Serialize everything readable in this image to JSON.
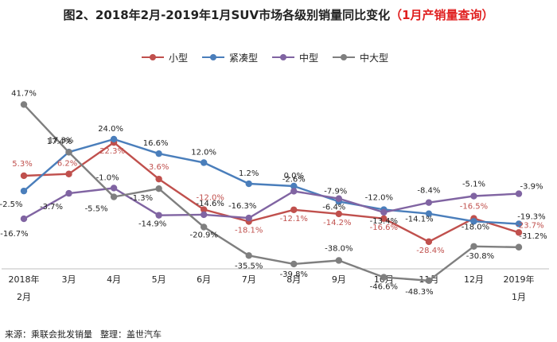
{
  "chart_data": {
    "type": "line",
    "title": "图2、2018年2月-2019年1月SUV市场各级别销量同比变化",
    "title_highlight": "（1月产销量查询）",
    "categories": [
      "2018年\n2月",
      "3月",
      "4月",
      "5月",
      "6月",
      "7月",
      "8月",
      "9月",
      "10月",
      "11月",
      "12月",
      "2019年\n1月"
    ],
    "xlabel": "",
    "ylabel": "",
    "unit": "%",
    "ylim": [
      -55,
      45
    ],
    "grid": false,
    "legend_position": "top",
    "series": [
      {
        "name": "小型",
        "color": "#c0504d",
        "values": [
          5.3,
          6.2,
          22.3,
          3.6,
          -12.0,
          -18.1,
          -12.1,
          -14.2,
          -16.6,
          -28.4,
          -16.5,
          -23.7
        ],
        "labels": [
          "5.3%",
          "6.2%",
          "22.3%",
          "3.6%",
          "-12.0%",
          "-18.1%",
          "-12.1%",
          "-14.2%",
          "-16.6%",
          "-28.4%",
          "-16.5%",
          "-23.7%"
        ]
      },
      {
        "name": "紧凑型",
        "color": "#4a7ebb",
        "values": [
          -2.5,
          17.4,
          24.0,
          16.6,
          12.0,
          1.2,
          0.0,
          -7.9,
          -12.0,
          -14.1,
          -18.0,
          -19.3
        ],
        "labels": [
          "-2.5%",
          "17.4%",
          "24.0%",
          "16.6%",
          "12.0%",
          "1.2%",
          "0.0%",
          "-7.9%",
          "-12.0%",
          "-14.1%",
          "-18.0%",
          "-19.3%"
        ]
      },
      {
        "name": "中型",
        "color": "#8064a2",
        "values": [
          -16.7,
          -3.7,
          -1.0,
          -14.9,
          -14.6,
          -16.3,
          -2.6,
          -6.4,
          -13.4,
          -8.4,
          -5.1,
          -3.9
        ],
        "labels": [
          "-16.7%",
          "-3.7%",
          "-1.0%",
          "-14.9%",
          "-14.6%",
          "-16.3%",
          "-2.6%",
          "-6.4%",
          "-13.4%",
          "-8.4%",
          "-5.1%",
          "-3.9%"
        ]
      },
      {
        "name": "中大型",
        "color": "#7f7f7f",
        "values": [
          41.7,
          17.3,
          -5.5,
          -1.3,
          -20.9,
          -35.5,
          -39.8,
          -38.0,
          -46.6,
          -48.3,
          -30.8,
          -31.2
        ],
        "labels": [
          "41.7%",
          "17.3%",
          "-5.5%",
          "-1.3%",
          "-20.9%",
          "-35.5%",
          "-39.8%",
          "-38.0%",
          "-46.6%",
          "-48.3%",
          "-30.8%",
          "-31.2%"
        ]
      }
    ],
    "source": "来源：乘联会批发销量",
    "editor": "整理：盖世汽车"
  }
}
